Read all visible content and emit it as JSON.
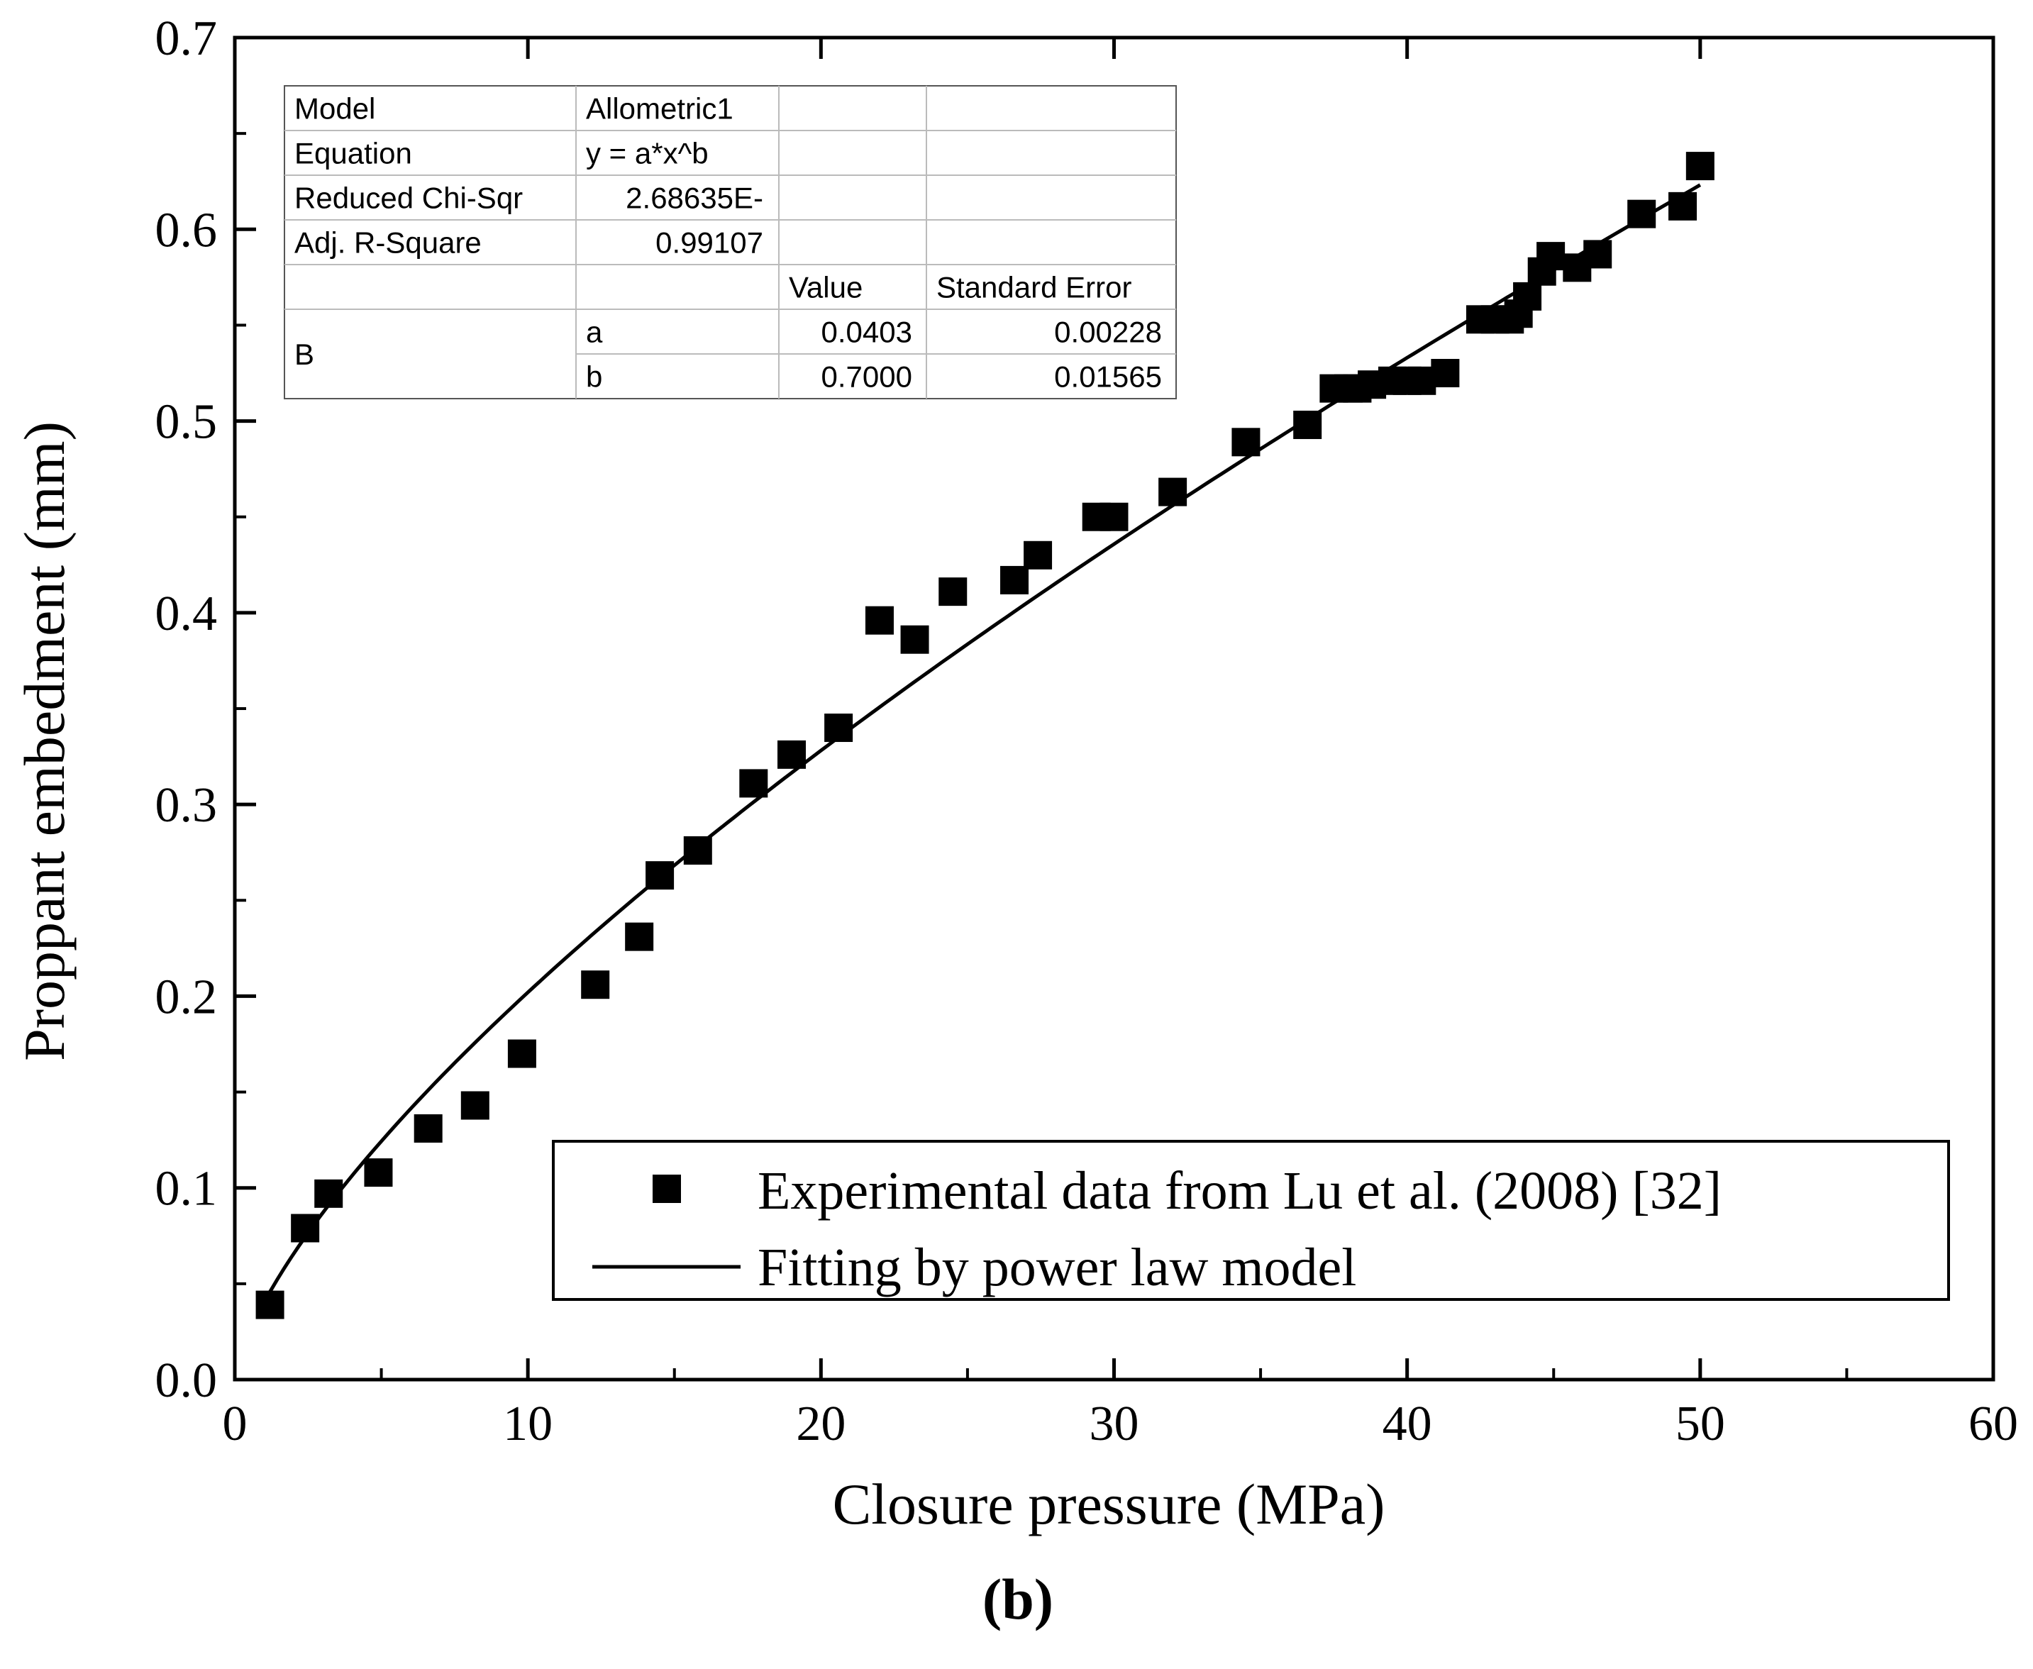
{
  "chart_data": {
    "type": "scatter",
    "title": "",
    "xlabel": "Closure pressure (MPa)",
    "ylabel": "Proppant embedment (mm)",
    "caption": "(b)",
    "xlim": [
      0,
      60
    ],
    "ylim": [
      0.0,
      0.7
    ],
    "x_ticks": [
      0,
      10,
      20,
      30,
      40,
      50,
      60
    ],
    "y_ticks": [
      0.0,
      0.1,
      0.2,
      0.3,
      0.4,
      0.5,
      0.6,
      0.7
    ],
    "x_tick_labels": [
      "0",
      "10",
      "20",
      "30",
      "40",
      "50",
      "60"
    ],
    "y_tick_labels": [
      "0.0",
      "0.1",
      "0.2",
      "0.3",
      "0.4",
      "0.5",
      "0.6",
      "0.7"
    ],
    "grid": false,
    "legend_position": "bottom-right",
    "series": [
      {
        "name": "Experimental data from Lu et al. (2008) [32]",
        "marker": "square",
        "color": "#000000",
        "x": [
          1.2,
          2.4,
          3.2,
          4.9,
          6.6,
          8.2,
          9.8,
          12.3,
          13.8,
          14.5,
          15.8,
          17.7,
          19.0,
          20.6,
          22.0,
          23.2,
          24.5,
          26.6,
          27.4,
          29.4,
          30.0,
          32.0,
          34.5,
          36.6,
          37.5,
          38.0,
          38.3,
          38.8,
          39.5,
          40.0,
          40.5,
          41.3,
          42.5,
          43.0,
          43.5,
          43.8,
          44.1,
          44.6,
          44.9,
          45.8,
          46.5,
          48.0,
          49.4,
          50.0
        ],
        "y": [
          0.039,
          0.079,
          0.097,
          0.108,
          0.131,
          0.143,
          0.17,
          0.206,
          0.231,
          0.263,
          0.276,
          0.311,
          0.326,
          0.34,
          0.396,
          0.386,
          0.411,
          0.417,
          0.43,
          0.45,
          0.45,
          0.463,
          0.489,
          0.498,
          0.517,
          0.517,
          0.517,
          0.519,
          0.521,
          0.521,
          0.521,
          0.525,
          0.553,
          0.553,
          0.553,
          0.556,
          0.565,
          0.578,
          0.586,
          0.58,
          0.587,
          0.608,
          0.612,
          0.633
        ]
      },
      {
        "name": "Fitting by power law model",
        "type": "line",
        "color": "#000000",
        "model": "power",
        "params": {
          "a": 0.0403,
          "b": 0.7
        },
        "x_range": [
          1.2,
          50
        ]
      }
    ],
    "fit_table": {
      "rows": [
        [
          "Model",
          "Allometric1",
          "",
          ""
        ],
        [
          "Equation",
          "y = a*x^b",
          "",
          ""
        ],
        [
          "Reduced Chi-Sqr",
          "2.68635E-",
          "",
          ""
        ],
        [
          "Adj. R-Square",
          "0.99107",
          "",
          ""
        ],
        [
          "",
          "",
          "Value",
          "Standard Error"
        ],
        [
          "B",
          "a",
          "0.0403",
          "0.00228"
        ],
        [
          "",
          "b",
          "0.7000",
          "0.01565"
        ]
      ]
    }
  }
}
